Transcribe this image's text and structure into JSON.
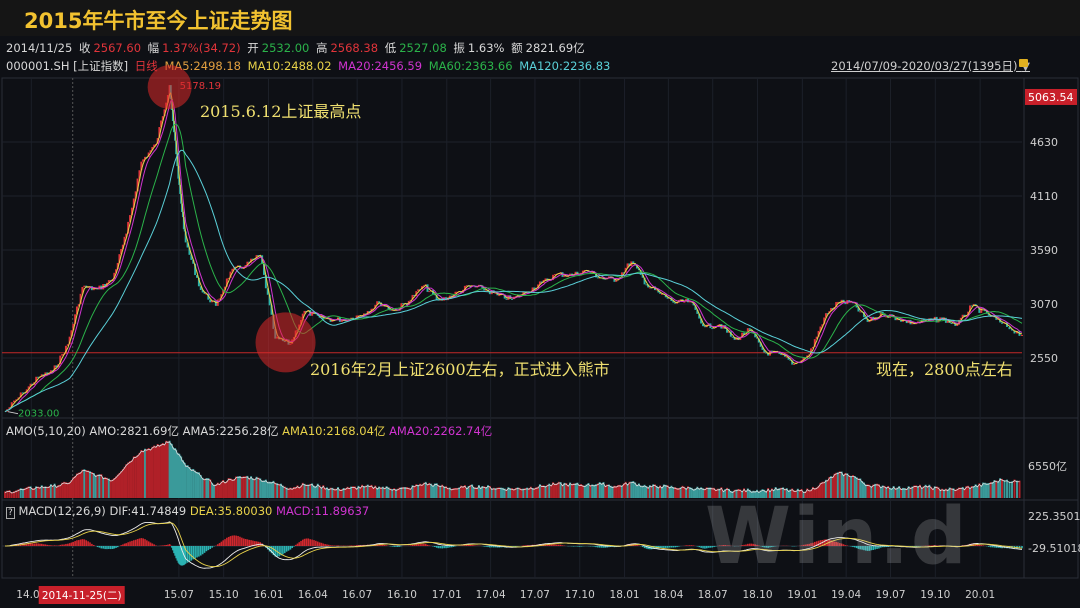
{
  "title": "2015年牛市至今上证走势图",
  "quote": {
    "date": "2014/11/25",
    "close_label": "收",
    "close": "2567.60",
    "chg_label": "幅",
    "chg": "1.37%(34.72)",
    "open_label": "开",
    "open": "2532.00",
    "high_label": "高",
    "high": "2568.38",
    "low_label": "低",
    "low": "2527.08",
    "amp_label": "振",
    "amp": "1.63%",
    "amt_label": "额",
    "amt": "2821.69亿"
  },
  "ma": {
    "code": "000001.SH [上证指数]",
    "period": "日线",
    "ma5": "MA5:2498.18",
    "ma10": "MA10:2488.02",
    "ma20": "MA20:2456.59",
    "ma60": "MA60:2363.66",
    "ma120": "MA120:2236.83"
  },
  "range_label": "2014/07/09-2020/03/27(1395日)",
  "icons": {
    "dropdown": "triangle-down-icon",
    "lock": "lock-open-icon",
    "help": "question-icon"
  },
  "amo": {
    "label": "AMO(5,10,20)",
    "amo": "AMO:2821.69亿",
    "ama5": "AMA5:2256.28亿",
    "ama10": "AMA10:2168.04亿",
    "ama20": "AMA20:2262.74亿",
    "axis": "6550亿"
  },
  "macd": {
    "label": "MACD(12,26,9)",
    "dif": "DIF:41.74849",
    "dea": "DEA:35.80030",
    "macd": "MACD:11.89637",
    "axis_top": "225.35010",
    "axis_bottom": "-29.51018"
  },
  "annotations": {
    "peak": "2015.6.12上证最高点",
    "bear": "2016年2月上证2600左右，正式进入熊市",
    "now": "现在，2800点左右"
  },
  "watermark": "Win.d",
  "colors": {
    "up": "#e0343a",
    "down": "#2bb3a8",
    "accent": "#f2c230",
    "annotation": "#f0e070"
  },
  "chart_data": {
    "type": "line",
    "y_ticks": [
      "2550",
      "3070",
      "3590",
      "4110",
      "4630"
    ],
    "current_label": "5063.54",
    "max_label": "5178.19",
    "min_label": "2033.00",
    "reference_line": 2600,
    "x_ticks": [
      "14.09",
      "15.07",
      "15.10",
      "16.01",
      "16.04",
      "16.07",
      "16.10",
      "17.01",
      "17.04",
      "17.07",
      "17.10",
      "18.01",
      "18.04",
      "18.07",
      "18.10",
      "19.01",
      "19.04",
      "19.07",
      "19.10",
      "20.01"
    ],
    "cursor_label": "2014-11-25(二)",
    "x": [
      "2014-07-09",
      "2014-08",
      "2014-09",
      "2014-10",
      "2014-11",
      "2014-12",
      "2015-01",
      "2015-02",
      "2015-03",
      "2015-04",
      "2015-05",
      "2015-06-12",
      "2015-06-30",
      "2015-07",
      "2015-08",
      "2015-09",
      "2015-10",
      "2015-11",
      "2015-12",
      "2016-01",
      "2016-02",
      "2016-03",
      "2016-04",
      "2016-05",
      "2016-06",
      "2016-07",
      "2016-08",
      "2016-09",
      "2016-10",
      "2016-11",
      "2016-12",
      "2017-01",
      "2017-02",
      "2017-03",
      "2017-04",
      "2017-05",
      "2017-06",
      "2017-07",
      "2017-08",
      "2017-09",
      "2017-10",
      "2017-11",
      "2017-12",
      "2018-01",
      "2018-02",
      "2018-03",
      "2018-04",
      "2018-05",
      "2018-06",
      "2018-07",
      "2018-08",
      "2018-09",
      "2018-10",
      "2018-11",
      "2018-12",
      "2019-01",
      "2019-02",
      "2019-03",
      "2019-04",
      "2019-05",
      "2019-06",
      "2019-07",
      "2019-08",
      "2019-09",
      "2019-10",
      "2019-11",
      "2019-12",
      "2020-01",
      "2020-02",
      "2020-03-27"
    ],
    "close": [
      2033,
      2217,
      2363,
      2420,
      2682,
      3234,
      3210,
      3310,
      3748,
      4441,
      4611,
      5178,
      4277,
      3663,
      3205,
      3052,
      3382,
      3445,
      3539,
      2737,
      2687,
      3003,
      2938,
      2916,
      2929,
      2979,
      3085,
      3004,
      3100,
      3250,
      3103,
      3159,
      3241,
      3222,
      3154,
      3117,
      3192,
      3273,
      3360,
      3348,
      3393,
      3317,
      3307,
      3480,
      3259,
      3168,
      3082,
      3095,
      2847,
      2876,
      2725,
      2821,
      2603,
      2588,
      2493,
      2584,
      2940,
      3090,
      3078,
      2898,
      2979,
      2932,
      2886,
      2905,
      2929,
      2871,
      3050,
      2976,
      2880,
      2772
    ],
    "amount": [
      1200,
      1700,
      2100,
      2300,
      2800,
      5200,
      4300,
      3400,
      6200,
      8800,
      9500,
      10500,
      8200,
      6000,
      4200,
      2500,
      3600,
      4000,
      3600,
      2800,
      1900,
      2600,
      2300,
      1700,
      1900,
      2200,
      2100,
      1800,
      1900,
      2800,
      2400,
      1800,
      2200,
      2200,
      1900,
      1800,
      1900,
      2300,
      2700,
      2600,
      2500,
      2700,
      2200,
      3000,
      2200,
      2300,
      2000,
      2000,
      1700,
      1700,
      1500,
      1500,
      1500,
      1800,
      1400,
      1500,
      3000,
      4700,
      4200,
      2500,
      2300,
      1900,
      2100,
      2200,
      1700,
      1700,
      2200,
      2700,
      3500,
      3000
    ]
  }
}
